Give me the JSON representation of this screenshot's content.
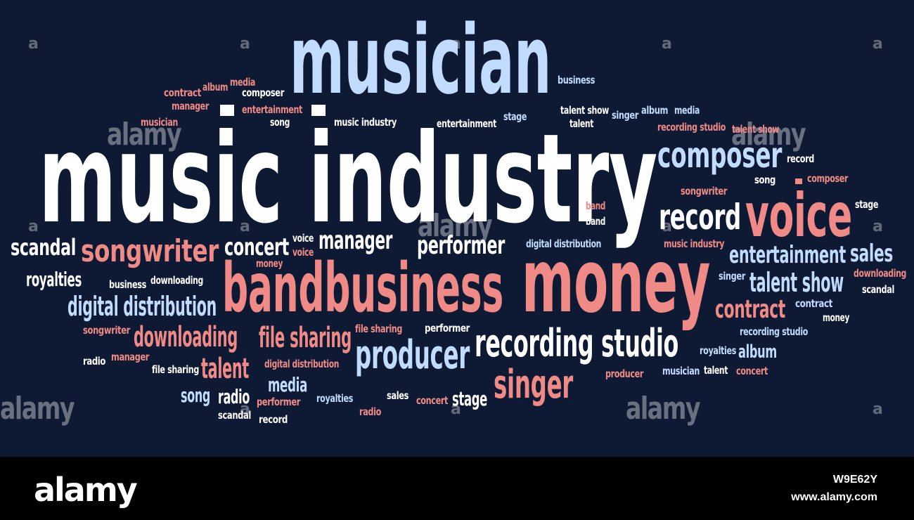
{
  "word_cloud": {
    "background": "#0e1a33",
    "colors": {
      "white": "#ffffff",
      "blue": "#c2dcff",
      "red": "#f08a86"
    },
    "words": [
      {
        "text": "music industry",
        "color": "white"
      },
      {
        "text": "musician",
        "color": "blue"
      },
      {
        "text": "money",
        "color": "red"
      },
      {
        "text": "bandbusiness",
        "color": "red"
      },
      {
        "text": "voice",
        "color": "red"
      },
      {
        "text": "recording studio",
        "color": "white"
      },
      {
        "text": "producer",
        "color": "blue"
      },
      {
        "text": "singer",
        "color": "red"
      },
      {
        "text": "composer",
        "color": "blue"
      },
      {
        "text": "record",
        "color": "white"
      },
      {
        "text": "songwriter",
        "color": "red"
      },
      {
        "text": "entertainment",
        "color": "blue"
      },
      {
        "text": "sales",
        "color": "blue"
      },
      {
        "text": "talent show",
        "color": "blue"
      },
      {
        "text": "contract",
        "color": "red"
      },
      {
        "text": "digital distribution",
        "color": "blue"
      },
      {
        "text": "downloading",
        "color": "red"
      },
      {
        "text": "file sharing",
        "color": "red"
      },
      {
        "text": "concert",
        "color": "white"
      },
      {
        "text": "manager",
        "color": "white"
      },
      {
        "text": "performer",
        "color": "white"
      },
      {
        "text": "scandal",
        "color": "white"
      },
      {
        "text": "royalties",
        "color": "white"
      },
      {
        "text": "talent",
        "color": "red"
      },
      {
        "text": "media",
        "color": "blue"
      },
      {
        "text": "stage",
        "color": "white"
      },
      {
        "text": "song",
        "color": "blue"
      },
      {
        "text": "radio",
        "color": "white"
      },
      {
        "text": "album",
        "color": "blue"
      },
      {
        "text": "contract",
        "color": "red"
      },
      {
        "text": "album",
        "color": "red"
      },
      {
        "text": "media",
        "color": "red"
      },
      {
        "text": "composer",
        "color": "white"
      },
      {
        "text": "manager",
        "color": "red"
      },
      {
        "text": "entertainment",
        "color": "red"
      },
      {
        "text": "musician",
        "color": "red"
      },
      {
        "text": "song",
        "color": "white"
      },
      {
        "text": "music industry",
        "color": "white"
      },
      {
        "text": "entertainment",
        "color": "white"
      },
      {
        "text": "stage",
        "color": "blue"
      },
      {
        "text": "business",
        "color": "blue"
      },
      {
        "text": "talent show",
        "color": "white"
      },
      {
        "text": "talent",
        "color": "white"
      },
      {
        "text": "singer",
        "color": "blue"
      },
      {
        "text": "album",
        "color": "blue"
      },
      {
        "text": "media",
        "color": "blue"
      },
      {
        "text": "recording studio",
        "color": "red"
      },
      {
        "text": "talent show",
        "color": "red"
      },
      {
        "text": "record",
        "color": "white"
      },
      {
        "text": "song",
        "color": "white"
      },
      {
        "text": "composer",
        "color": "red"
      },
      {
        "text": "songwriter",
        "color": "red"
      },
      {
        "text": "band",
        "color": "red"
      },
      {
        "text": "band",
        "color": "white"
      },
      {
        "text": "stage",
        "color": "white"
      },
      {
        "text": "music industry",
        "color": "red"
      },
      {
        "text": "digital distribution",
        "color": "blue"
      },
      {
        "text": "voice",
        "color": "white"
      },
      {
        "text": "voice",
        "color": "red"
      },
      {
        "text": "money",
        "color": "red"
      },
      {
        "text": "business",
        "color": "white"
      },
      {
        "text": "downloading",
        "color": "white"
      },
      {
        "text": "singer",
        "color": "blue"
      },
      {
        "text": "downloading",
        "color": "red"
      },
      {
        "text": "scandal",
        "color": "white"
      },
      {
        "text": "contract",
        "color": "blue"
      },
      {
        "text": "money",
        "color": "white"
      },
      {
        "text": "songwriter",
        "color": "red"
      },
      {
        "text": "file sharing",
        "color": "red"
      },
      {
        "text": "performer",
        "color": "white"
      },
      {
        "text": "recording studio",
        "color": "blue"
      },
      {
        "text": "radio",
        "color": "white"
      },
      {
        "text": "manager",
        "color": "red"
      },
      {
        "text": "file sharing",
        "color": "white"
      },
      {
        "text": "digital distribution",
        "color": "red"
      },
      {
        "text": "royalties",
        "color": "blue"
      },
      {
        "text": "musician",
        "color": "blue"
      },
      {
        "text": "talent",
        "color": "white"
      },
      {
        "text": "concert",
        "color": "red"
      },
      {
        "text": "producer",
        "color": "red"
      },
      {
        "text": "sales",
        "color": "white"
      },
      {
        "text": "performer",
        "color": "red"
      },
      {
        "text": "royalties",
        "color": "blue"
      },
      {
        "text": "radio",
        "color": "red"
      },
      {
        "text": "concert",
        "color": "red"
      },
      {
        "text": "scandal",
        "color": "white"
      },
      {
        "text": "record",
        "color": "white"
      }
    ]
  },
  "watermarks": {
    "small": "a",
    "large": "alamy"
  },
  "footer": {
    "logo": "alamy",
    "image_id": "W9E62Y",
    "url": "www.alamy.com"
  }
}
